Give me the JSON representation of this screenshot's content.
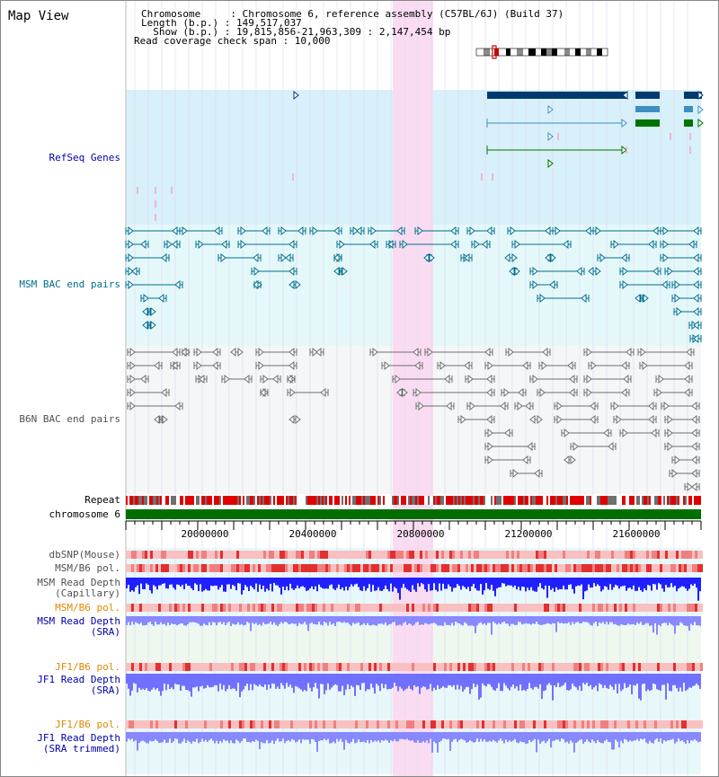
{
  "app": {
    "title": "Map View"
  },
  "info": {
    "lines": [
      "Chromosome     : Chromosome 6, reference assembly (C57BL/6J) (Build 37)",
      "Length (b.p.) : 149,517,037",
      "  Show (b.p.) : 19,815,856-21,963,309 : 2,147,454 bp",
      "Read coverage check span : 10,000"
    ]
  },
  "colors": {
    "refseq_bg": "#d8f0fa",
    "msm_bac_bg": "#e4f8fa",
    "b6n_bac_bg": "#f5f6f8",
    "highlight": "#fadcf2",
    "refseq": "#003a6e",
    "refseq_mid": "#3d8fbf",
    "refseq_green": "#007300",
    "msm_bac": "#006e8c",
    "b6n_bac": "#6e6e6e",
    "chromosome": "#006e00",
    "repeat_red": "#e00000",
    "repeat_gray": "#707070",
    "snp_red": "#e04040",
    "depth_blue": "#2020ff",
    "depth_light": "#8888ff",
    "sra_bg": "#eef8ee",
    "jf1_bg": "#e4f8fa",
    "label_blue": "#0000aa",
    "label_orange": "#e08800",
    "label_teal": "#006e8c",
    "label_gray": "#505050"
  },
  "tracks": {
    "refseq": {
      "label": "RefSeq Genes"
    },
    "msm_bac": {
      "label": "MSM BAC end pairs"
    },
    "b6n_bac": {
      "label": "B6N BAC end pairs"
    },
    "repeat": {
      "label": "Repeat"
    },
    "chromosome": {
      "label": "chromosome 6"
    },
    "dbsnp": {
      "label": "dbSNP(Mouse)"
    },
    "msm_pol_cap": {
      "label": "MSM/B6 pol."
    },
    "msm_depth_cap": {
      "label": "MSM Read Depth\n(Capillary)"
    },
    "msm_pol_sra": {
      "label": "MSM/B6 pol."
    },
    "msm_depth_sra": {
      "label": "MSM Read Depth\n(SRA)"
    },
    "jf1_pol": {
      "label": "JF1/B6 pol."
    },
    "jf1_depth": {
      "label": "JF1 Read Depth\n(SRA)"
    },
    "jf1_pol_trim": {
      "label": "JF1/B6 pol."
    },
    "jf1_depth_trim": {
      "label": "JF1 Read Depth\n(SRA trimmed)"
    }
  },
  "axis": {
    "ticks": [
      "20000000",
      "20400000",
      "20800000",
      "21200000",
      "21600000"
    ]
  }
}
